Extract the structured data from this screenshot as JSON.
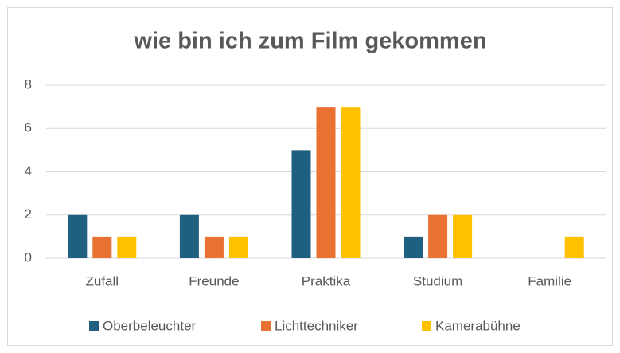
{
  "chart_data": {
    "type": "bar",
    "title": "wie bin ich zum Film gekommen",
    "categories": [
      "Zufall",
      "Freunde",
      "Praktika",
      "Studium",
      "Familie"
    ],
    "series": [
      {
        "name": "Oberbeleuchter",
        "color": "#1f5f80",
        "values": [
          2,
          2,
          5,
          1,
          0
        ]
      },
      {
        "name": "Lichttechniker",
        "color": "#e97132",
        "values": [
          1,
          1,
          7,
          2,
          0
        ]
      },
      {
        "name": "Kamerabühne",
        "color": "#ffc000",
        "values": [
          1,
          1,
          7,
          2,
          1
        ]
      }
    ],
    "ylim": [
      0,
      8
    ],
    "yticks": [
      0,
      2,
      4,
      6,
      8
    ],
    "grid": true,
    "legend": "bottom"
  }
}
